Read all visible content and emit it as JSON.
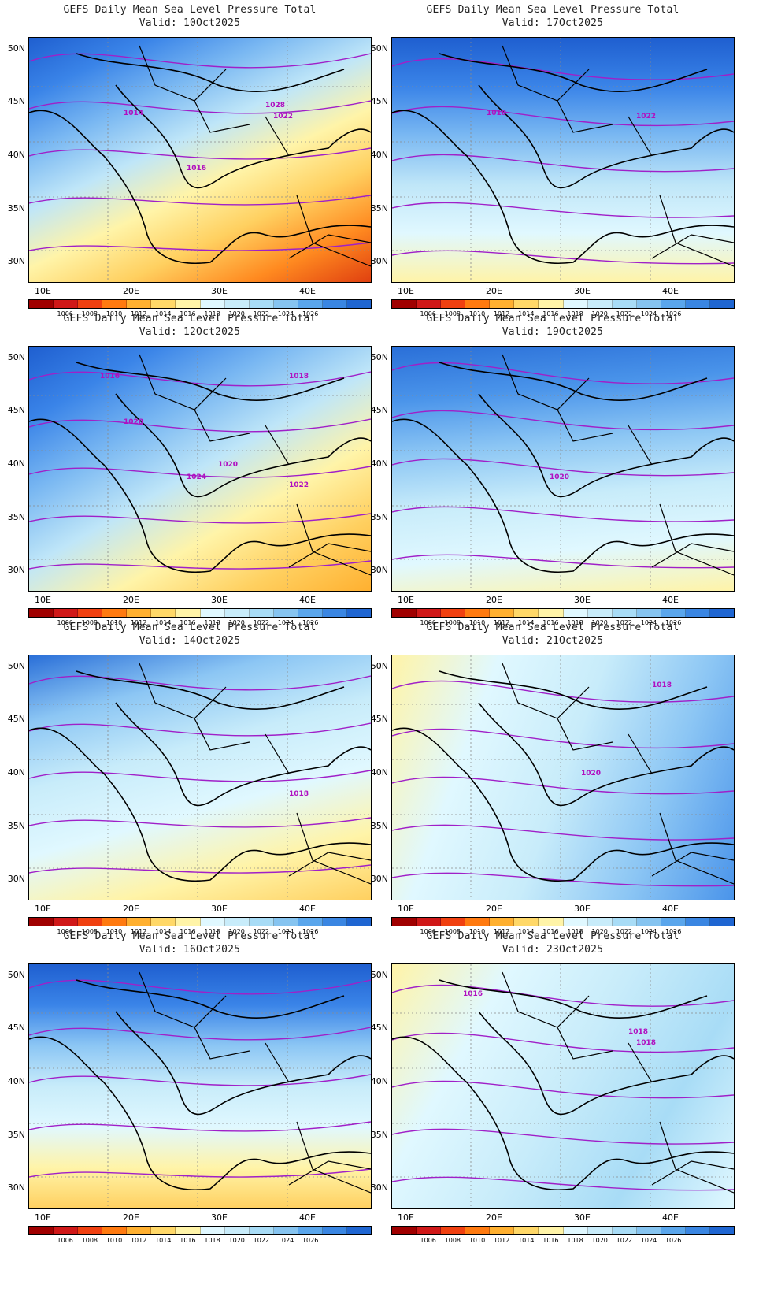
{
  "title": "GEFS Daily Mean Sea Level Pressure Total",
  "panels": [
    {
      "valid": "Valid: 10Oct2025",
      "labels": [
        "1028",
        "1022",
        "1014",
        "1016"
      ],
      "gradient": [
        "#1f5fd0",
        "#3a84e8",
        "#7ab8f2",
        "#bfe6f8",
        "#fff4a8",
        "#ffd060",
        "#ff8a20",
        "#e04010"
      ],
      "angle": 155
    },
    {
      "valid": "Valid: 17Oct2025",
      "labels": [
        "1022",
        "1018"
      ],
      "gradient": [
        "#1f5fd0",
        "#3a84e8",
        "#7ab8f2",
        "#bfe6f8",
        "#e0f8ff",
        "#fff4a8"
      ],
      "angle": 180
    },
    {
      "valid": "Valid: 12Oct2025",
      "labels": [
        "1028",
        "1024",
        "1022",
        "1020",
        "1018",
        "1016"
      ],
      "gradient": [
        "#1f5fd0",
        "#3a84e8",
        "#7ab8f2",
        "#bfe6f8",
        "#fff4a8",
        "#ffd060",
        "#ffb030"
      ],
      "angle": 150
    },
    {
      "valid": "Valid: 19Oct2025",
      "labels": [
        "1020"
      ],
      "gradient": [
        "#2a6fd8",
        "#4a94ea",
        "#8cc6f4",
        "#c8ecfa",
        "#e0f8ff",
        "#fff4a8"
      ],
      "angle": 175
    },
    {
      "valid": "Valid: 14Oct2025",
      "labels": [
        "1018"
      ],
      "gradient": [
        "#2a6fd8",
        "#8cc6f4",
        "#c8ecfa",
        "#e0f8ff",
        "#fff4a8",
        "#ffd060"
      ],
      "angle": 165
    },
    {
      "valid": "Valid: 21Oct2025",
      "labels": [
        "1020",
        "1018"
      ],
      "gradient": [
        "#fff4a8",
        "#e0f8ff",
        "#c8ecfa",
        "#8cc6f4",
        "#4a94ea"
      ],
      "angle": 110
    },
    {
      "valid": "Valid: 16Oct2025",
      "labels": [],
      "gradient": [
        "#1f5fd0",
        "#3a84e8",
        "#8cc6f4",
        "#c8ecfa",
        "#e0f8ff",
        "#fff4a8",
        "#ffd060"
      ],
      "angle": 180
    },
    {
      "valid": "Valid: 23Oct2025",
      "labels": [
        "1016",
        "1018",
        "1018"
      ],
      "gradient": [
        "#fff4a8",
        "#e0f8ff",
        "#c8ecfa",
        "#a8dcf6",
        "#e0f8ff"
      ],
      "angle": 120
    }
  ],
  "lat_labels": [
    "50N",
    "45N",
    "40N",
    "35N",
    "30N"
  ],
  "lon_labels": [
    "10E",
    "20E",
    "30E",
    "40E"
  ],
  "colorbar": {
    "colors": [
      "#a00000",
      "#d01818",
      "#f04010",
      "#ff7a10",
      "#ffb030",
      "#ffd868",
      "#fff4a8",
      "#e0f8ff",
      "#c8ecfa",
      "#a8dcf6",
      "#86c4f0",
      "#5aa6ec",
      "#3a86e2",
      "#1f66d2"
    ],
    "labels": [
      "1006",
      "1008",
      "1010",
      "1012",
      "1014",
      "1016",
      "1018",
      "1020",
      "1022",
      "1024",
      "1026"
    ]
  }
}
